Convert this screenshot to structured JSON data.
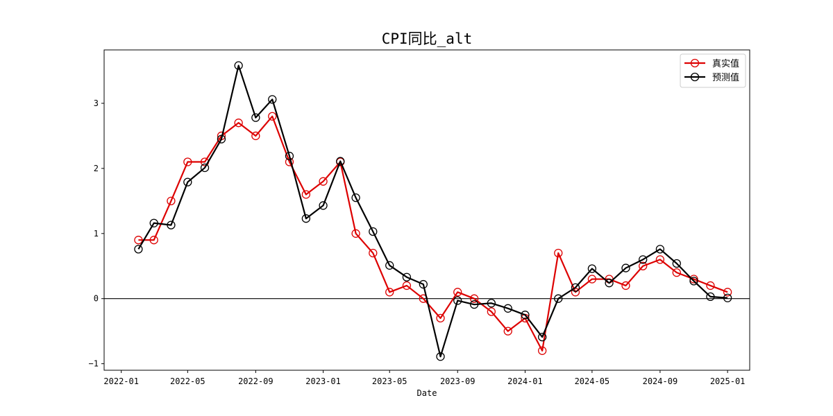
{
  "chart_data": {
    "type": "line",
    "title": "CPI同比_alt",
    "xlabel": "Date",
    "ylabel": "",
    "x_ticks": [
      "2022-01",
      "2022-05",
      "2022-09",
      "2023-01",
      "2023-05",
      "2023-09",
      "2024-01",
      "2024-05",
      "2024-09",
      "2025-01"
    ],
    "y_ticks": [
      -1,
      0,
      1,
      2,
      3
    ],
    "xlim": [
      "2021-12-01",
      "2025-02-10"
    ],
    "ylim": [
      -1.1,
      3.82
    ],
    "reference_line": 0,
    "legend_position": "top-right",
    "grid": false,
    "x": [
      "2022-02",
      "2022-03",
      "2022-04",
      "2022-05",
      "2022-06",
      "2022-07",
      "2022-08",
      "2022-09",
      "2022-10",
      "2022-11",
      "2022-12",
      "2023-01",
      "2023-02",
      "2023-03",
      "2023-04",
      "2023-05",
      "2023-06",
      "2023-07",
      "2023-08",
      "2023-09",
      "2023-10",
      "2023-11",
      "2023-12",
      "2024-01",
      "2024-02",
      "2024-03",
      "2024-04",
      "2024-05",
      "2024-06",
      "2024-07",
      "2024-08",
      "2024-09",
      "2024-10",
      "2024-11",
      "2024-12",
      "2025-01"
    ],
    "series": [
      {
        "name": "真实值",
        "color": "#dd0000",
        "values": [
          0.9,
          0.9,
          1.5,
          2.1,
          2.1,
          2.5,
          2.7,
          2.5,
          2.8,
          2.1,
          1.6,
          1.8,
          2.1,
          1.0,
          0.7,
          0.1,
          0.2,
          0.0,
          -0.3,
          0.1,
          0.0,
          -0.2,
          -0.5,
          -0.3,
          -0.8,
          0.7,
          0.1,
          0.3,
          0.3,
          0.2,
          0.5,
          0.6,
          0.4,
          0.3,
          0.2,
          0.1
        ]
      },
      {
        "name": "预测值",
        "color": "#000000",
        "values": [
          0.76,
          1.16,
          1.13,
          1.79,
          2.01,
          2.45,
          3.58,
          2.78,
          3.06,
          2.19,
          1.23,
          1.43,
          2.11,
          1.55,
          1.03,
          0.51,
          0.33,
          0.22,
          -0.89,
          -0.03,
          -0.09,
          -0.07,
          -0.15,
          -0.25,
          -0.59,
          0.0,
          0.17,
          0.46,
          0.24,
          0.47,
          0.6,
          0.76,
          0.54,
          0.27,
          0.03,
          0.01
        ]
      }
    ]
  }
}
